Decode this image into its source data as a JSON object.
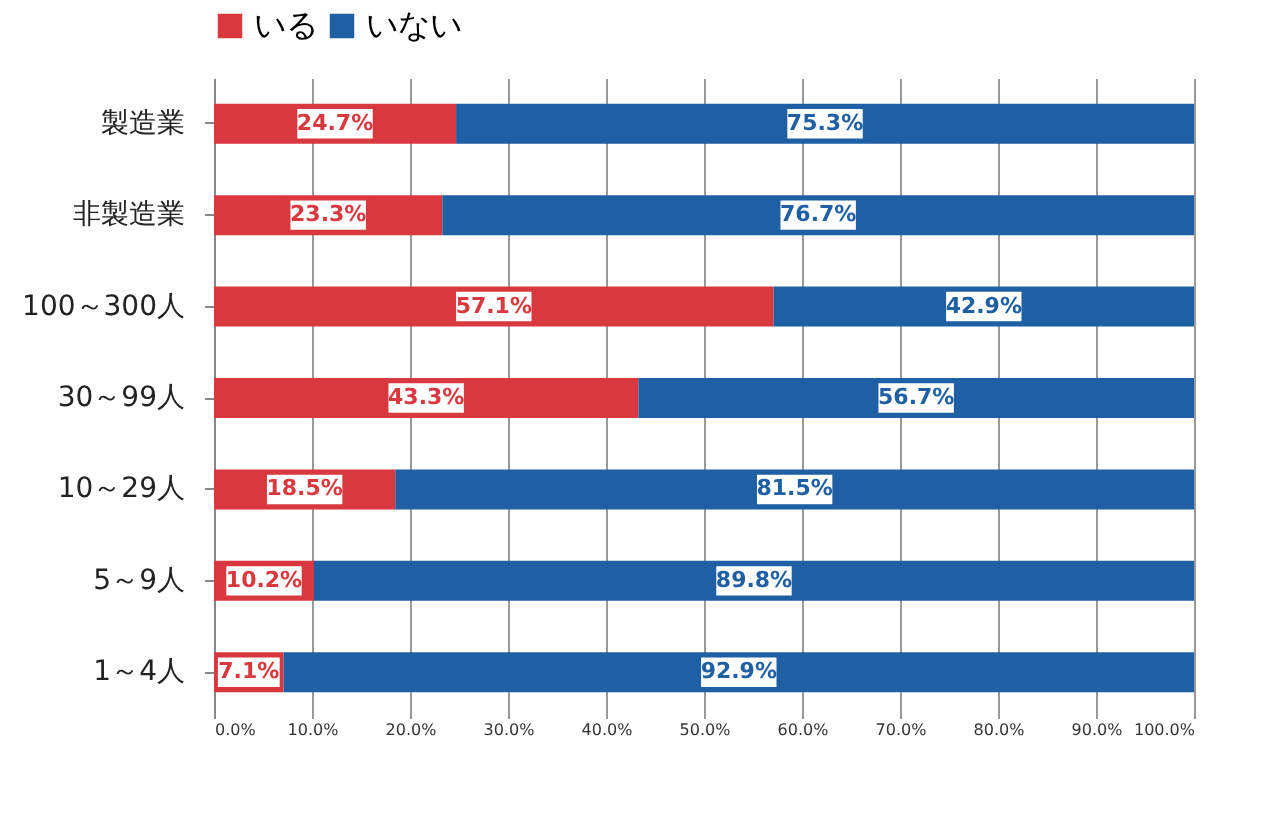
{
  "chart_data": {
    "type": "bar",
    "orientation": "horizontal",
    "stacked": true,
    "categories": [
      "製造業",
      "非製造業",
      "100～300人",
      "30～99人",
      "10～29人",
      "5～9人",
      "1～4人"
    ],
    "series": [
      {
        "name": "いる",
        "color": "#d9383f",
        "values": [
          24.7,
          23.3,
          57.1,
          43.3,
          18.5,
          10.2,
          7.1
        ],
        "value_labels": [
          "24.7%",
          "23.3%",
          "57.1%",
          "43.3%",
          "18.5%",
          "10.2%",
          "7.1%"
        ]
      },
      {
        "name": "いない",
        "color": "#1f5fa3",
        "values": [
          75.3,
          76.7,
          42.9,
          56.7,
          81.5,
          89.8,
          92.9
        ],
        "value_labels": [
          "75.3%",
          "76.7%",
          "42.9%",
          "56.7%",
          "81.5%",
          "89.8%",
          "92.9%"
        ]
      }
    ],
    "xlim": [
      0,
      100
    ],
    "xticks": [
      {
        "value": 0,
        "label": "0.0%"
      },
      {
        "value": 10,
        "label": "10.0%"
      },
      {
        "value": 20,
        "label": "20.0%"
      },
      {
        "value": 30,
        "label": "30.0%"
      },
      {
        "value": 40,
        "label": "40.0%"
      },
      {
        "value": 50,
        "label": "50.0%"
      },
      {
        "value": 60,
        "label": "60.0%"
      },
      {
        "value": 70,
        "label": "70.0%"
      },
      {
        "value": 80,
        "label": "80.0%"
      },
      {
        "value": 90,
        "label": "90.0%"
      },
      {
        "value": 100,
        "label": "100.0%"
      }
    ],
    "grid": "x",
    "legend": "top"
  }
}
